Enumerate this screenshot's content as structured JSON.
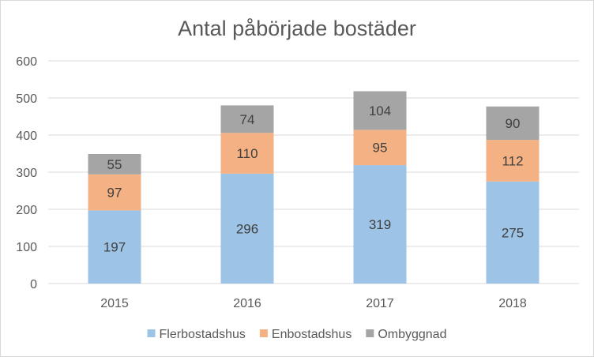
{
  "chart_data": {
    "type": "bar",
    "stacked": true,
    "title": "Antal påbörjade bostäder",
    "xlabel": "",
    "ylabel": "",
    "categories": [
      "2015",
      "2016",
      "2017",
      "2018"
    ],
    "series": [
      {
        "name": "Flerbostadshus",
        "values": [
          197,
          296,
          319,
          275
        ],
        "color": "#9dc3e6"
      },
      {
        "name": "Enbostadshus",
        "values": [
          97,
          110,
          95,
          112
        ],
        "color": "#f4b183"
      },
      {
        "name": "Ombyggnad",
        "values": [
          55,
          74,
          104,
          90
        ],
        "color": "#a5a5a5"
      }
    ],
    "yticks": [
      "0",
      "100",
      "200",
      "300",
      "400",
      "500",
      "600"
    ],
    "ylim": [
      0,
      600
    ],
    "grid": true,
    "legend_position": "bottom"
  }
}
